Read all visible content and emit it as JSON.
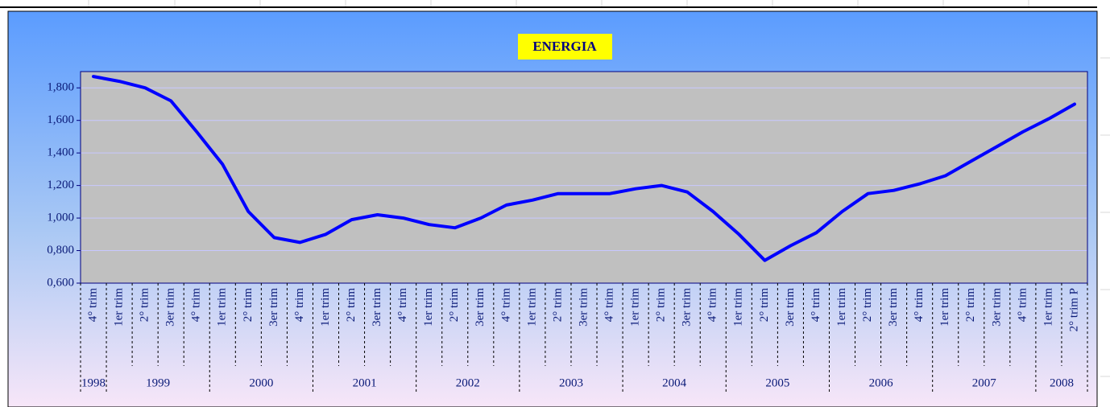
{
  "chart_data": {
    "type": "line",
    "title": "ENERGIA",
    "groups": [
      {
        "label": "1998",
        "categories": [
          "4° trim"
        ]
      },
      {
        "label": "1999",
        "categories": [
          "1er trim",
          "2° trim",
          "3er trim",
          "4° trim"
        ]
      },
      {
        "label": "2000",
        "categories": [
          "1er trim",
          "2° trim",
          "3er trim",
          "4° trim"
        ]
      },
      {
        "label": "2001",
        "categories": [
          "1er trim",
          "2° trim",
          "3er trim",
          "4° trim"
        ]
      },
      {
        "label": "2002",
        "categories": [
          "1er trim",
          "2° trim",
          "3er trim",
          "4° trim"
        ]
      },
      {
        "label": "2003",
        "categories": [
          "1er trim",
          "2° trim",
          "3er trim",
          "4° trim"
        ]
      },
      {
        "label": "2004",
        "categories": [
          "1er trim",
          "2° trim",
          "3er trim",
          "4° trim"
        ]
      },
      {
        "label": "2005",
        "categories": [
          "1er trim",
          "2° trim",
          "3er trim",
          "4° trim"
        ]
      },
      {
        "label": "2006",
        "categories": [
          "1er trim",
          "2° trim",
          "3er trim",
          "4° trim"
        ]
      },
      {
        "label": "2007",
        "categories": [
          "1er trim",
          "2° trim",
          "3er trim",
          "4° trim"
        ]
      },
      {
        "label": "2008",
        "categories": [
          "1er trim",
          "2° trim P"
        ]
      }
    ],
    "values": [
      1.87,
      1.84,
      1.8,
      1.72,
      1.53,
      1.33,
      1.04,
      0.88,
      0.85,
      0.9,
      0.99,
      1.02,
      1.0,
      0.96,
      0.94,
      1.0,
      1.08,
      1.11,
      1.15,
      1.15,
      1.15,
      1.18,
      1.2,
      1.16,
      1.04,
      0.9,
      0.74,
      0.83,
      0.91,
      1.04,
      1.15,
      1.17,
      1.21,
      1.26,
      1.35,
      1.44,
      1.53,
      1.61,
      1.7
    ],
    "color": "#0000ff",
    "ylim": [
      0.6,
      1.9
    ],
    "yticks": [
      {
        "value": 0.6,
        "label": "0,600"
      },
      {
        "value": 0.8,
        "label": "0,800"
      },
      {
        "value": 1.0,
        "label": "1,000"
      },
      {
        "value": 1.2,
        "label": "1,200"
      },
      {
        "value": 1.4,
        "label": "1,400"
      },
      {
        "value": 1.6,
        "label": "1,600"
      },
      {
        "value": 1.8,
        "label": "1,800"
      }
    ],
    "grid": true
  }
}
